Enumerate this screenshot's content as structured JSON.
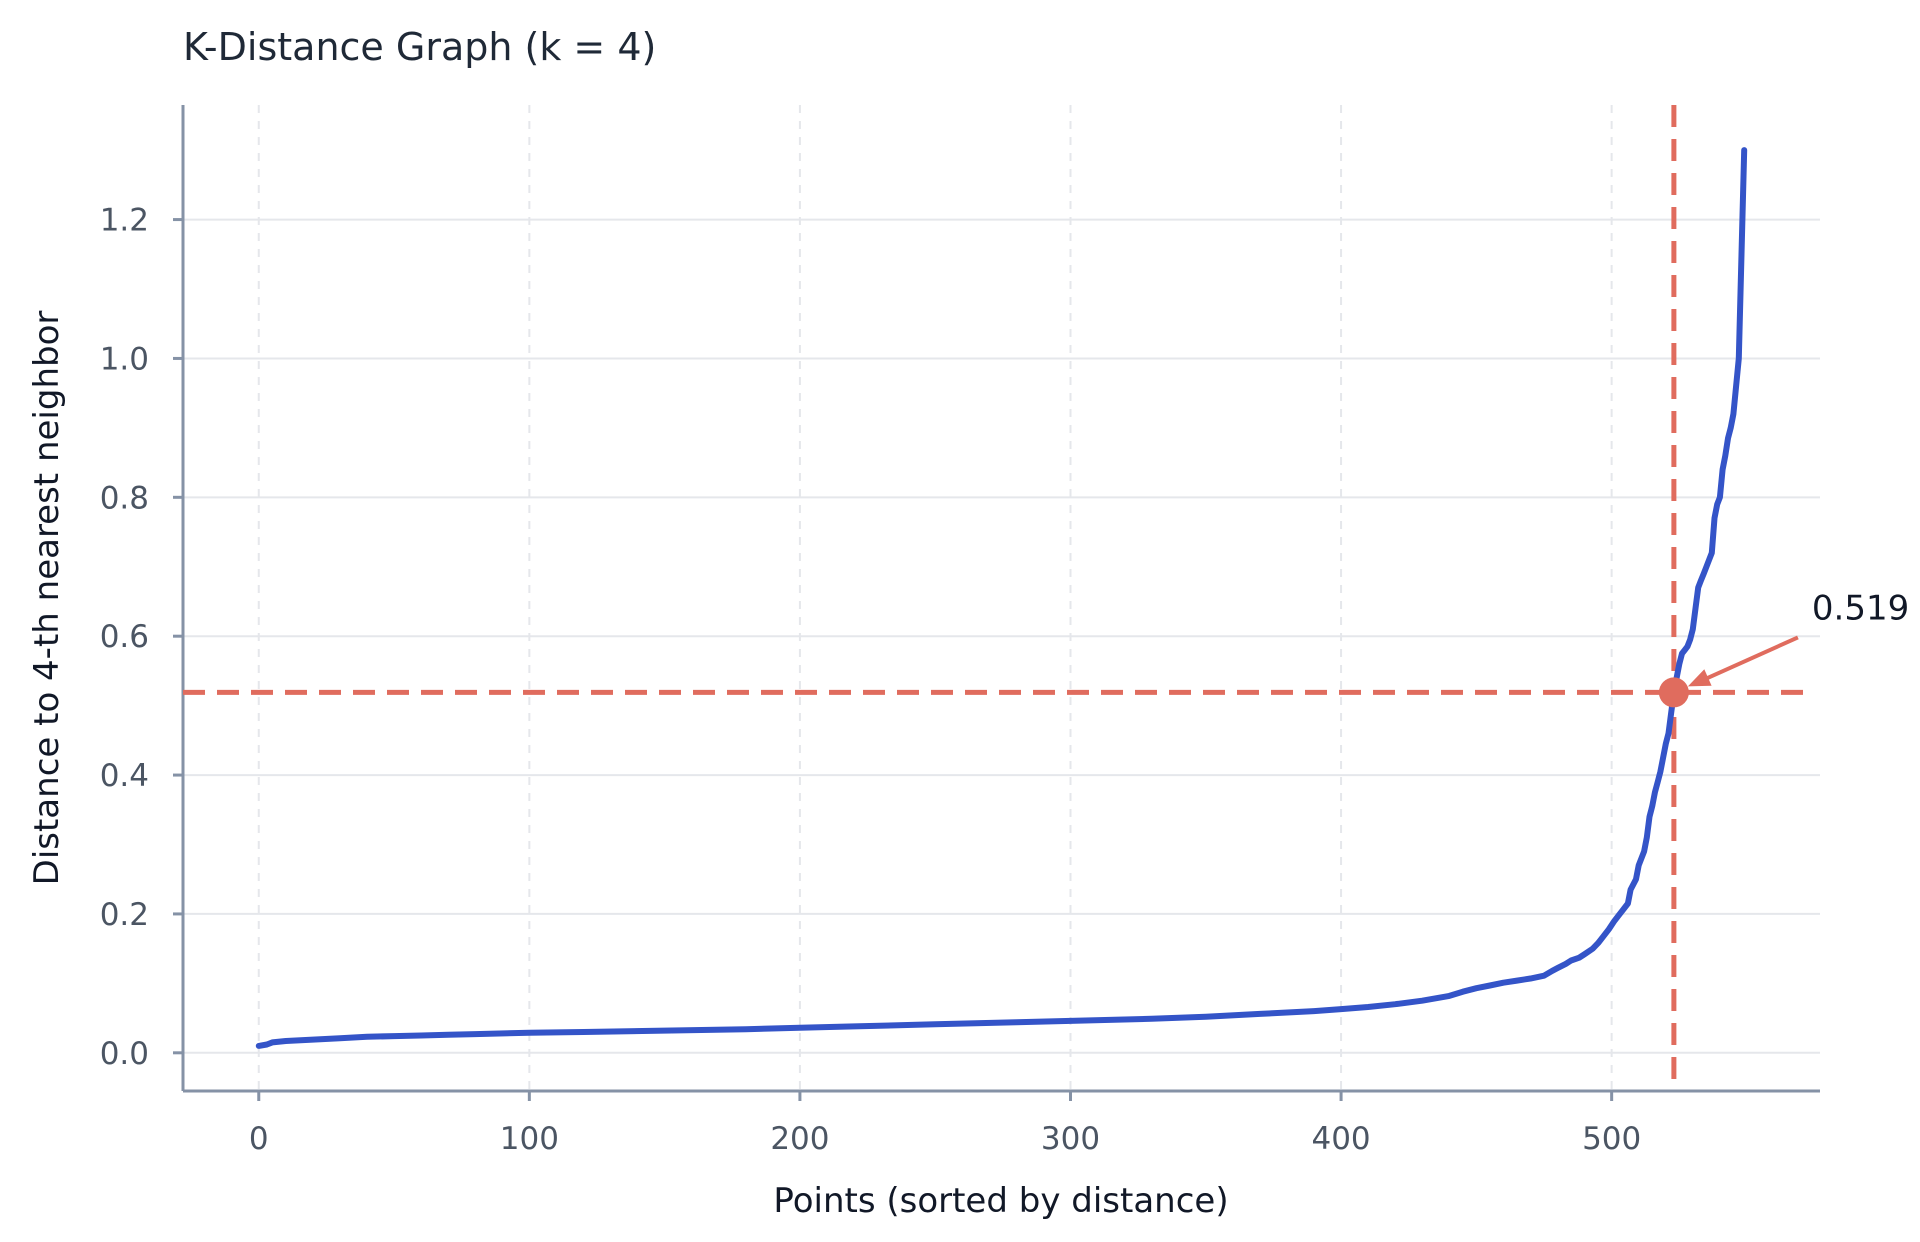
{
  "chart_data": {
    "type": "line",
    "title": "K-Distance Graph (k = 4)",
    "xlabel": "Points (sorted by distance)",
    "ylabel": "Distance to 4-th nearest neighbor",
    "xlim": [
      -28,
      577
    ],
    "ylim": [
      -0.055,
      1.365
    ],
    "xticks": [
      0,
      100,
      200,
      300,
      400,
      500
    ],
    "yticks": [
      0.0,
      0.2,
      0.4,
      0.6,
      0.8,
      1.0,
      1.2
    ],
    "ytick_labels": [
      "0.0",
      "0.2",
      "0.4",
      "0.6",
      "0.8",
      "1.0",
      "1.2"
    ],
    "grid": true,
    "series": [
      {
        "color": "#3454c8",
        "x": [
          0,
          3,
          5,
          10,
          20,
          30,
          40,
          50,
          60,
          70,
          80,
          100,
          120,
          150,
          180,
          200,
          220,
          250,
          280,
          300,
          330,
          350,
          370,
          390,
          400,
          410,
          420,
          430,
          440,
          445,
          450,
          455,
          460,
          465,
          470,
          475,
          478,
          480,
          483,
          485,
          488,
          490,
          493,
          495,
          497,
          499,
          501,
          503,
          504,
          506,
          507,
          509,
          510,
          512,
          513,
          514,
          515,
          516,
          517,
          518,
          519,
          520,
          521,
          522,
          523,
          524,
          525,
          526,
          527,
          528,
          529,
          530,
          531,
          532,
          533,
          534,
          535,
          536,
          537,
          538,
          539,
          540,
          541,
          542,
          543,
          544,
          545,
          546,
          547,
          548,
          549
        ],
        "y": [
          0.01,
          0.012,
          0.015,
          0.017,
          0.019,
          0.021,
          0.023,
          0.024,
          0.025,
          0.026,
          0.027,
          0.029,
          0.03,
          0.032,
          0.034,
          0.036,
          0.038,
          0.041,
          0.044,
          0.046,
          0.049,
          0.052,
          0.056,
          0.06,
          0.063,
          0.066,
          0.07,
          0.075,
          0.082,
          0.088,
          0.093,
          0.097,
          0.101,
          0.104,
          0.107,
          0.111,
          0.118,
          0.122,
          0.128,
          0.133,
          0.137,
          0.142,
          0.15,
          0.158,
          0.168,
          0.178,
          0.19,
          0.2,
          0.205,
          0.215,
          0.235,
          0.25,
          0.27,
          0.29,
          0.31,
          0.34,
          0.355,
          0.375,
          0.39,
          0.405,
          0.425,
          0.445,
          0.46,
          0.49,
          0.519,
          0.54,
          0.56,
          0.575,
          0.58,
          0.585,
          0.595,
          0.61,
          0.64,
          0.67,
          0.68,
          0.69,
          0.7,
          0.71,
          0.72,
          0.77,
          0.79,
          0.8,
          0.84,
          0.86,
          0.885,
          0.9,
          0.92,
          0.96,
          1.0,
          1.15,
          1.3
        ]
      }
    ],
    "threshold": {
      "color": "#e06c5e",
      "x": 523,
      "y": 0.519,
      "label": "0.519"
    }
  }
}
